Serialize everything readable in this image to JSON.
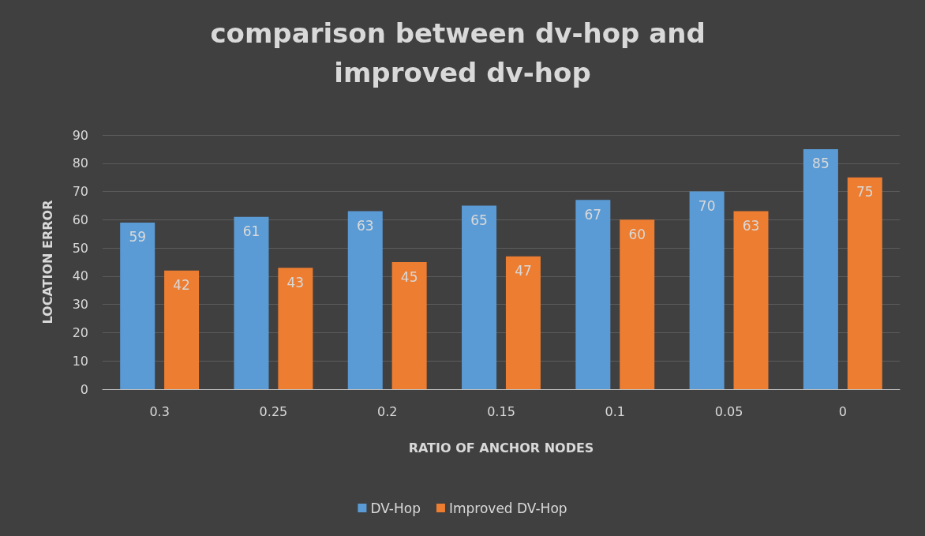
{
  "chart_data": {
    "type": "bar",
    "title": "comparison between dv-hop and improved dv-hop",
    "xlabel": "RATIO OF ANCHOR NODES",
    "ylabel": "LOCATION ERROR",
    "categories": [
      "0.3",
      "0.25",
      "0.2",
      "0.15",
      "0.1",
      "0.05",
      "0"
    ],
    "series": [
      {
        "name": "DV-Hop",
        "color": "#5b9bd5",
        "values": [
          59,
          61,
          63,
          65,
          67,
          70,
          85
        ]
      },
      {
        "name": "Improved DV-Hop",
        "color": "#ed7d31",
        "values": [
          42,
          43,
          45,
          47,
          60,
          63,
          75
        ]
      }
    ],
    "ylim": [
      0,
      90
    ],
    "yticks": [
      0,
      10,
      20,
      30,
      40,
      50,
      60,
      70,
      80,
      90
    ],
    "grid": "y",
    "legend": "bottom",
    "data_labels": true
  }
}
